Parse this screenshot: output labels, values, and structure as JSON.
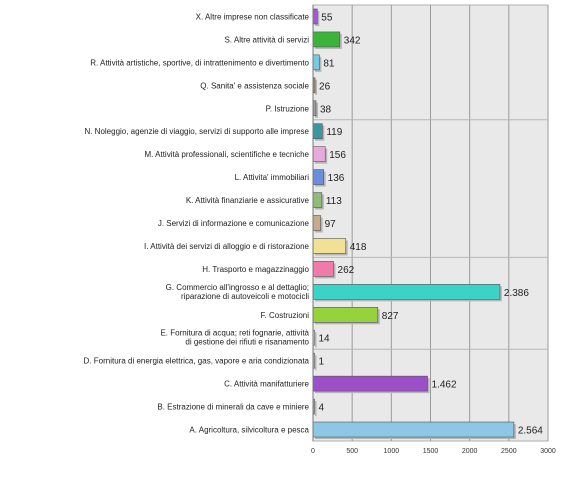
{
  "chart_data": {
    "type": "bar",
    "orientation": "horizontal",
    "title": "",
    "xlabel": "",
    "ylabel": "",
    "xlim": [
      0,
      3000
    ],
    "xticks": [
      0,
      500,
      1000,
      1500,
      2000,
      2500,
      3000
    ],
    "grid": true,
    "legend": "none",
    "categories": [
      "X. Altre imprese non classificate",
      "S. Altre attività di servizi",
      "R. Attività artistiche, sportive, di intrattenimento e divertimento",
      "Q. Sanita' e assistenza sociale",
      "P. Istruzione",
      "N. Noleggio, agenzie di viaggio, servizi di supporto alle imprese",
      "M. Attività professionali, scientifiche e tecniche",
      "L. Attivita' immobiliari",
      "K. Attività finanziarie e assicurative",
      "J. Servizi di informazione e comunicazione",
      "I. Attività dei servizi di alloggio e di ristorazione",
      "H. Trasporto e magazzinaggio",
      "G. Commercio all'ingrosso e al dettaglio; riparazione di autoveicoli e motocicli",
      "F. Costruzioni",
      "E. Fornitura di acqua; reti fognarie, attività di gestione dei rifiuti e risanamento",
      "D. Fornitura di energia elettrica, gas, vapore e aria condizionata",
      "C. Attività manifatturiere",
      "B. Estrazione di minerali da cave e miniere",
      "A. Agricoltura, silvicoltura e pesca"
    ],
    "label_lines": [
      [
        "X. Altre imprese non classificate"
      ],
      [
        "S. Altre attività di servizi"
      ],
      [
        "R. Attività artistiche, sportive, di intrattenimento e divertimento"
      ],
      [
        "Q. Sanita' e assistenza sociale"
      ],
      [
        "P. Istruzione"
      ],
      [
        "N. Noleggio, agenzie di viaggio, servizi di supporto alle imprese"
      ],
      [
        "M. Attività professionali, scientifiche e tecniche"
      ],
      [
        "L. Attivita' immobiliari"
      ],
      [
        "K. Attività finanziarie e assicurative"
      ],
      [
        "J. Servizi di informazione e comunicazione"
      ],
      [
        "I. Attività dei servizi di alloggio e di ristorazione"
      ],
      [
        "H. Trasporto e magazzinaggio"
      ],
      [
        "G. Commercio all'ingrosso e al dettaglio;",
        "riparazione di autoveicoli e motocicli"
      ],
      [
        "F. Costruzioni"
      ],
      [
        "E. Fornitura di acqua; reti fognarie, attività",
        "di gestione dei rifiuti e risanamento"
      ],
      [
        "D. Fornitura di energia elettrica, gas, vapore e aria condizionata"
      ],
      [
        "C. Attività manifatturiere"
      ],
      [
        "B. Estrazione di minerali da cave e miniere"
      ],
      [
        "A. Agricoltura, silvicoltura e pesca"
      ]
    ],
    "values": [
      55,
      342,
      81,
      26,
      38,
      119,
      156,
      136,
      113,
      97,
      418,
      262,
      2386,
      827,
      14,
      1,
      1462,
      4,
      2564
    ],
    "value_labels": [
      "55",
      "342",
      "81",
      "26",
      "38",
      "119",
      "156",
      "136",
      "113",
      "97",
      "418",
      "262",
      "2.386",
      "827",
      "14",
      "1",
      "1.462",
      "4",
      "2.564"
    ],
    "colors": [
      "#a05ad2",
      "#3cb43c",
      "#78c8e6",
      "#a08c78",
      "#9a9a9a",
      "#3c96a0",
      "#e6aadc",
      "#6e8cdc",
      "#8cbe78",
      "#c8aa8c",
      "#f0e196",
      "#f07aaa",
      "#3cd2c8",
      "#96d23c",
      "#d2d2d2",
      "#b4b4b4",
      "#9b50c8",
      "#a0a0a0",
      "#8cc8e6"
    ]
  }
}
